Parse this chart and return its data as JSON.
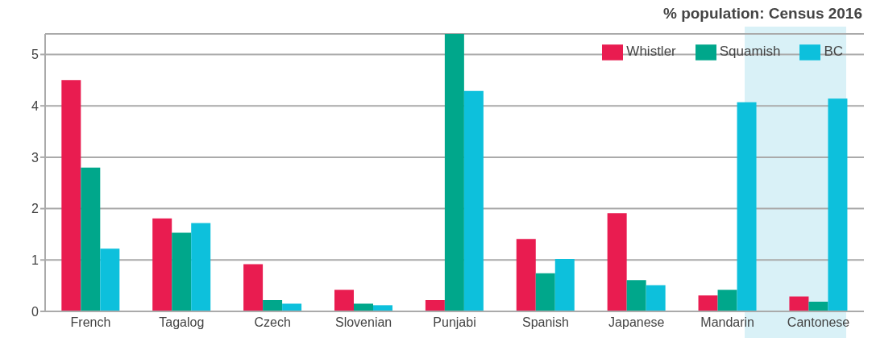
{
  "chart_data": {
    "type": "bar",
    "title": "% population: Census 2016",
    "categories": [
      "French",
      "Tagalog",
      "Czech",
      "Slovenian",
      "Punjabi",
      "Spanish",
      "Japanese",
      "Mandarin",
      "Cantonese"
    ],
    "series": [
      {
        "name": "Whistler",
        "color": "#e91c50",
        "values": [
          4.5,
          1.81,
          0.92,
          0.42,
          0.22,
          1.41,
          1.91,
          0.31,
          0.29
        ]
      },
      {
        "name": "Squamish",
        "color": "#00a78b",
        "values": [
          2.8,
          1.53,
          0.22,
          0.15,
          5.4,
          0.74,
          0.61,
          0.42,
          0.19
        ]
      },
      {
        "name": "BC",
        "color": "#0dc0dc",
        "values": [
          1.22,
          1.72,
          0.15,
          0.12,
          4.29,
          1.02,
          0.51,
          4.07,
          4.14
        ]
      }
    ],
    "ylim": [
      0,
      5.4
    ],
    "yticks": [
      0,
      1,
      2,
      3,
      4,
      5
    ],
    "grid": "y",
    "legend": "top right"
  }
}
